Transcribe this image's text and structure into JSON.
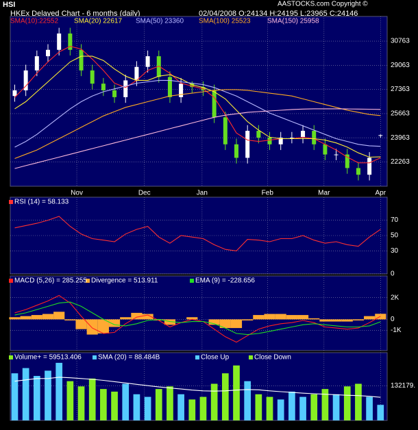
{
  "header": {
    "symbol": "HSI",
    "subtitle": "HKEx  Delayed Chart - 6 months (daily)",
    "quote": "02/04/2008  O:24134  H:24195  L:23965  C:24146",
    "copyright": "AASTOCKS.com Copyright ©"
  },
  "chart_data": [
    {
      "type": "candlestick",
      "open": [
        26900,
        27300,
        28700,
        29700,
        30150,
        31300,
        30150,
        28700,
        27770,
        27300,
        26820,
        28000,
        28950,
        29700,
        28240,
        26820,
        27770,
        27530,
        27300,
        25400,
        23500,
        22550,
        24450,
        23970,
        23500,
        23970,
        23970,
        24450,
        23500,
        22785,
        22785,
        21830,
        21360,
        24134
      ],
      "high": [
        27700,
        29100,
        30100,
        30550,
        31700,
        31700,
        30550,
        29100,
        28170,
        27700,
        28400,
        29350,
        30100,
        30100,
        28640,
        28170,
        27930,
        27930,
        27700,
        25800,
        23900,
        24850,
        24850,
        24370,
        24370,
        24370,
        24850,
        24850,
        23900,
        23185,
        23185,
        22230,
        22950,
        24195
      ],
      "low": [
        26500,
        26900,
        28300,
        29300,
        29750,
        29750,
        28300,
        27370,
        26900,
        26420,
        26420,
        27600,
        28550,
        27840,
        26420,
        26420,
        27130,
        26900,
        25000,
        23100,
        22150,
        22150,
        23570,
        23100,
        23100,
        23570,
        23570,
        23100,
        22385,
        22385,
        21430,
        20960,
        20960,
        23965
      ],
      "close": [
        27300,
        28700,
        29700,
        30150,
        31300,
        30150,
        28700,
        27770,
        27300,
        26820,
        28000,
        28950,
        29700,
        28240,
        26820,
        27770,
        27530,
        27300,
        25400,
        23500,
        22550,
        24450,
        23970,
        23500,
        23970,
        23970,
        24450,
        23500,
        22785,
        22785,
        21830,
        21360,
        22550,
        24146
      ],
      "up_color": "#ffffff",
      "down_color": "#66dd22",
      "xlim": [
        -0.4,
        33.6
      ],
      "xticks": [
        {
          "value": 5.6,
          "label": "Nov"
        },
        {
          "value": 11.7,
          "label": "Dec"
        },
        {
          "value": 16.9,
          "label": "Jan"
        },
        {
          "value": 22.8,
          "label": "Feb"
        },
        {
          "value": 27.9,
          "label": "Mar"
        },
        {
          "value": 33,
          "label": "Apr"
        }
      ],
      "ylim": [
        20550,
        32500
      ],
      "yticks": [
        22263,
        23963,
        25663,
        27363,
        29063,
        30763
      ],
      "grid": true,
      "series": [
        {
          "name": "SMA(10):22552",
          "color": "#ff2a2a",
          "values": [
            26800,
            27600,
            28500,
            29300,
            30000,
            30400,
            30200,
            29500,
            28700,
            27800,
            27500,
            28000,
            28700,
            29000,
            28500,
            27800,
            27600,
            27400,
            26800,
            25600,
            24300,
            23800,
            23700,
            23800,
            23900,
            23900,
            24000,
            23900,
            23500,
            23100,
            22600,
            22200,
            22200,
            22552
          ]
        },
        {
          "name": "SMA(20) 22617",
          "color": "#ffee33",
          "values": [
            26000,
            26500,
            27200,
            27900,
            28600,
            29300,
            29700,
            29700,
            29400,
            28800,
            28300,
            28000,
            28000,
            28300,
            28400,
            28100,
            27700,
            27500,
            27200,
            26700,
            25900,
            25100,
            24500,
            24000,
            23900,
            23900,
            23900,
            23900,
            23800,
            23600,
            23300,
            22900,
            22600,
            22617
          ]
        },
        {
          "name": "SMA(50) 23360",
          "color": "#b8b8ff",
          "values": [
            23300,
            23700,
            24200,
            24800,
            25400,
            26000,
            26500,
            26900,
            27200,
            27400,
            27600,
            27800,
            27900,
            28000,
            28000,
            27900,
            27800,
            27700,
            27500,
            27200,
            26900,
            26500,
            26100,
            25700,
            25400,
            25100,
            24800,
            24500,
            24200,
            23900,
            23700,
            23500,
            23400,
            23360
          ]
        },
        {
          "name": "SMA(100) 25523",
          "color": "#ffaa22",
          "values": [
            22500,
            22800,
            23100,
            23500,
            23900,
            24300,
            24700,
            25100,
            25500,
            25800,
            26100,
            26300,
            26500,
            26700,
            26900,
            27000,
            27100,
            27200,
            27300,
            27350,
            27350,
            27300,
            27200,
            27100,
            27000,
            26900,
            26700,
            26500,
            26300,
            26100,
            25900,
            25750,
            25600,
            25523
          ]
        },
        {
          "name": "SMA(150) 25958",
          "color": "#ffbbdd",
          "values": [
            21800,
            22000,
            22200,
            22400,
            22600,
            22800,
            23000,
            23200,
            23400,
            23600,
            23800,
            24000,
            24200,
            24400,
            24600,
            24800,
            25000,
            25200,
            25400,
            25550,
            25650,
            25750,
            25800,
            25850,
            25900,
            25950,
            25980,
            26000,
            26000,
            26000,
            25990,
            25980,
            25970,
            25958
          ]
        }
      ]
    },
    {
      "type": "line",
      "ylim": [
        0,
        100
      ],
      "yticks": [
        0,
        30,
        50,
        70
      ],
      "grid": true,
      "series": [
        {
          "name": "RSI (14)  = 58.133",
          "color": "#ff3030",
          "values": [
            60,
            63,
            66,
            70,
            75,
            62,
            52,
            46,
            44,
            42,
            52,
            58,
            62,
            48,
            40,
            50,
            48,
            46,
            38,
            32,
            30,
            45,
            44,
            42,
            46,
            46,
            50,
            44,
            40,
            42,
            38,
            36,
            48,
            58.133
          ]
        }
      ]
    },
    {
      "type": "macd",
      "ylim": [
        -2875,
        4000
      ],
      "yticks": [
        {
          "value": -1000,
          "label": "-1K"
        },
        0,
        {
          "value": 2000,
          "label": "2K"
        }
      ],
      "grid": true,
      "series": [
        {
          "name": "Divergence = 513.911",
          "color": "#ffaa33",
          "kind": "bar",
          "values": [
            200,
            300,
            400,
            500,
            700,
            -100,
            -900,
            -1400,
            -1300,
            -700,
            200,
            600,
            500,
            -100,
            -500,
            0,
            200,
            0,
            -500,
            -800,
            -800,
            -100,
            400,
            500,
            500,
            400,
            400,
            100,
            -200,
            -200,
            -200,
            -100,
            300,
            513.911
          ]
        },
        {
          "name": "MACD (5,26) = 285.255",
          "color": "#ff2020",
          "kind": "line",
          "values": [
            600,
            900,
            1300,
            1700,
            2200,
            1500,
            300,
            -800,
            -1300,
            -1200,
            -400,
            200,
            400,
            -100,
            -700,
            -300,
            0,
            -200,
            -900,
            -1600,
            -2100,
            -1500,
            -900,
            -600,
            -400,
            -300,
            -100,
            -300,
            -700,
            -800,
            -900,
            -800,
            -300,
            285.255
          ]
        },
        {
          "name": "EMA (9) = -228.656",
          "color": "#22dd22",
          "kind": "line",
          "values": [
            400,
            600,
            900,
            1200,
            1500,
            1600,
            1200,
            600,
            0,
            -500,
            -600,
            -400,
            -100,
            0,
            -200,
            -300,
            -200,
            -200,
            -400,
            -800,
            -1300,
            -1400,
            -1300,
            -1100,
            -900,
            -700,
            -500,
            -400,
            -500,
            -600,
            -700,
            -700,
            -600,
            -228.656
          ]
        }
      ]
    },
    {
      "type": "volume",
      "ylim": [
        0,
        259000
      ],
      "yticks": [
        {
          "value": 132179,
          "label": "132179."
        }
      ],
      "grid": true,
      "series": [
        {
          "name": "Volume+ = 59513.406",
          "color": "#88ee22",
          "kind": "bar",
          "values": [
            180000,
            200000,
            170000,
            190000,
            220000,
            150000,
            130000,
            160000,
            120000,
            110000,
            140000,
            100000,
            90000,
            120000,
            130000,
            100000,
            80000,
            90000,
            140000,
            180000,
            210000,
            150000,
            100000,
            90000,
            80000,
            110000,
            90000,
            100000,
            120000,
            100000,
            130000,
            140000,
            90000,
            59513.406
          ]
        },
        {
          "name": "SMA (20) = 88.484B",
          "color": "#55ccff",
          "kind": "line",
          "values": [
            150000,
            155000,
            160000,
            160000,
            165000,
            163000,
            160000,
            157000,
            153000,
            148000,
            143000,
            138000,
            133000,
            128000,
            124000,
            120000,
            116000,
            113000,
            112000,
            113000,
            116000,
            118000,
            117000,
            113000,
            110000,
            107000,
            104000,
            102000,
            100000,
            98000,
            96000,
            95000,
            92000,
            88484
          ]
        }
      ],
      "legend": [
        {
          "name": "Close Up",
          "color": "#55ccff"
        },
        {
          "name": "Close Down",
          "color": "#88ee22"
        }
      ]
    }
  ]
}
